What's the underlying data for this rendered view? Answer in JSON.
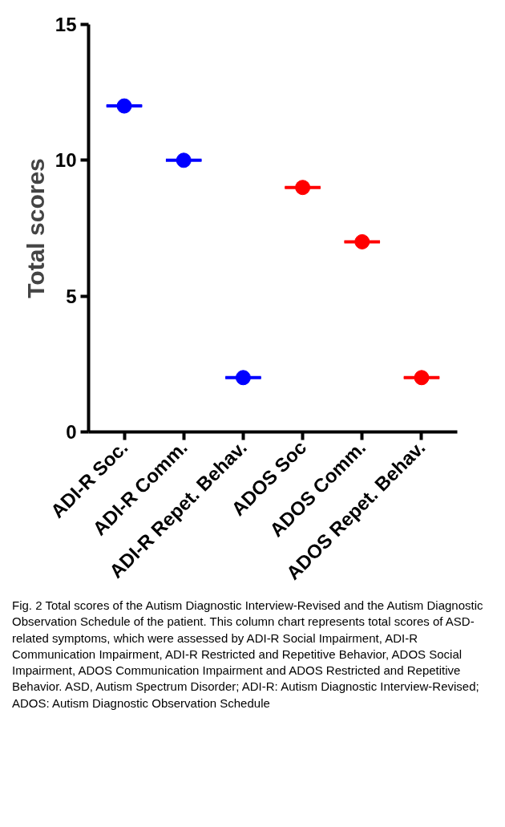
{
  "chart_data": {
    "type": "scatter",
    "ylabel": "Total scores",
    "categories": [
      "ADI-R Soc.",
      "ADI-R Comm.",
      "ADI-R Repet. Behav.",
      "ADOS Soc",
      "ADOS Comm.",
      "ADOS Repet. Behav."
    ],
    "series": [
      {
        "color": "#0000ff",
        "values": [
          12,
          10,
          2,
          null,
          null,
          null
        ]
      },
      {
        "color": "#ff0000",
        "values": [
          null,
          null,
          null,
          9,
          7,
          2
        ]
      },
      {
        "type": "box",
        "color": "#0000ff",
        "boxes": [
          {
            "low": 12,
            "q1": 12,
            "median": 12,
            "q3": 12,
            "high": 12
          },
          {
            "low": 10,
            "q1": 10,
            "median": 10,
            "q3": 10,
            "high": 10
          },
          {
            "low": 2,
            "q1": 2,
            "median": 2,
            "q3": 2,
            "high": 2
          },
          null,
          null,
          null
        ]
      },
      {
        "type": "box",
        "color": "#ff0000",
        "boxes": [
          null,
          null,
          null,
          {
            "low": 9,
            "q1": 9,
            "median": 9,
            "q3": 9,
            "high": 9
          },
          {
            "low": 7,
            "q1": 7,
            "median": 7,
            "q3": 7,
            "high": 7
          },
          {
            "low": 2,
            "q1": 2,
            "median": 2,
            "q3": 2,
            "high": 2
          }
        ]
      }
    ],
    "ylim": [
      0,
      15
    ],
    "yticks": [
      0,
      5,
      10,
      15
    ],
    "grid": false,
    "marker": "circle",
    "annotations": [
      "Fig. 2  Total scores of the Autism Diagnostic Interview-Revised and the Autism Diagnostic Observation Schedule of the patient. This column chart represents total scores of ASD-related symptoms, which were assessed by ADI-R Social Impairment, ADI-R Communication Impairment, ADI-R Restricted and Repetitive Behavior, ADOS Social Impairment, ADOS Communication Impairment and ADOS Restricted and Repetitive Behavior. ASD, Autism Spectrum Disorder; ADI-R: Autism Diagnostic Interview-Revised; ADOS: Autism Diagnostic Observation Schedule"
    ]
  }
}
